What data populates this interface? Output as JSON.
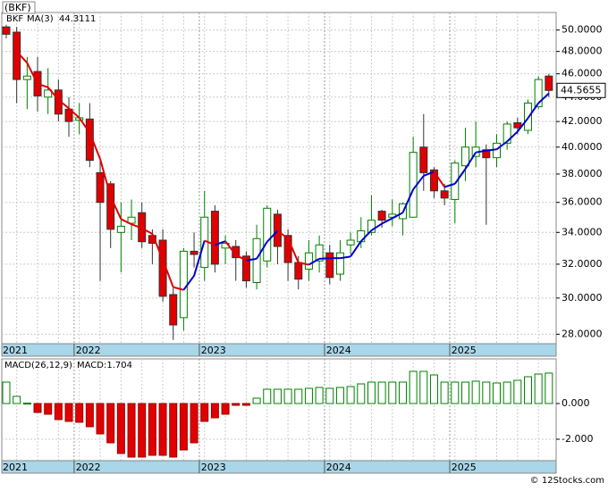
{
  "chart_data": [
    {
      "type": "candlestick",
      "title": "(BKF)",
      "log": true,
      "grid": true,
      "up_color": "#008000",
      "down_color": "#e00000",
      "categories": [
        "2021",
        null,
        null,
        null,
        null,
        null,
        null,
        "2022",
        null,
        null,
        null,
        null,
        null,
        null,
        null,
        null,
        null,
        null,
        null,
        "2023",
        null,
        null,
        null,
        null,
        null,
        null,
        null,
        null,
        null,
        null,
        null,
        "2024",
        null,
        null,
        null,
        null,
        null,
        null,
        null,
        null,
        null,
        null,
        null,
        "2025",
        null,
        null,
        null,
        null,
        null,
        null,
        null,
        null,
        null
      ],
      "name": "BKF",
      "open": [
        50.3,
        49.8,
        45.5,
        46.2,
        44.0,
        44.6,
        43.0,
        42.1,
        42.2,
        38.1,
        37.3,
        34.0,
        34.6,
        35.3,
        33.8,
        33.5,
        30.2,
        28.9,
        32.8,
        31.8,
        35.4,
        33.0,
        33.1,
        32.5,
        30.9,
        32.2,
        35.2,
        33.8,
        32.1,
        31.7,
        32.2,
        32.7,
        31.4,
        33.2,
        33.4,
        34.0,
        35.4,
        35.0,
        34.9,
        35.0,
        40.0,
        38.3,
        36.8,
        36.2,
        38.6,
        39.3,
        39.8,
        39.2,
        40.3,
        41.9,
        41.3,
        43.2,
        45.8
      ],
      "high": [
        50.5,
        50.3,
        47.5,
        47.5,
        46.5,
        45.5,
        44.0,
        43.5,
        43.5,
        39.0,
        37.5,
        36.0,
        36.2,
        36.0,
        34.2,
        34.2,
        30.6,
        33.0,
        34.0,
        36.8,
        35.8,
        33.8,
        33.5,
        32.8,
        34.5,
        35.8,
        35.5,
        34.2,
        32.5,
        33.5,
        33.8,
        33.2,
        33.5,
        34.0,
        35.0,
        36.5,
        35.5,
        36.2,
        36.0,
        40.8,
        42.6,
        38.5,
        37.3,
        39.0,
        41.5,
        42.0,
        40.2,
        41.0,
        42.0,
        42.3,
        43.8,
        45.8,
        46.0
      ],
      "low": [
        49.2,
        43.5,
        43.0,
        42.8,
        42.6,
        42.0,
        40.8,
        41.0,
        38.5,
        31.0,
        33.0,
        31.5,
        33.5,
        33.0,
        32.0,
        29.8,
        27.7,
        28.2,
        31.8,
        31.0,
        31.5,
        32.0,
        31.0,
        30.6,
        30.5,
        31.8,
        32.0,
        31.0,
        30.5,
        31.0,
        31.5,
        30.8,
        31.0,
        32.6,
        33.0,
        33.8,
        34.3,
        34.4,
        33.8,
        35.0,
        36.8,
        36.3,
        35.8,
        34.6,
        37.5,
        38.5,
        34.5,
        38.5,
        39.8,
        41.0,
        41.0,
        43.0,
        44.0
      ],
      "close": [
        49.6,
        45.5,
        45.8,
        44.1,
        44.6,
        42.6,
        42.0,
        42.3,
        39.0,
        36.0,
        34.2,
        34.4,
        35.0,
        33.4,
        33.3,
        30.1,
        28.5,
        32.8,
        32.6,
        35.0,
        32.0,
        33.3,
        32.4,
        31.0,
        33.6,
        35.6,
        33.1,
        32.1,
        31.1,
        32.7,
        33.2,
        31.2,
        32.7,
        33.5,
        34.1,
        34.8,
        34.8,
        35.2,
        35.9,
        39.6,
        38.1,
        36.8,
        36.3,
        38.8,
        40.0,
        40.0,
        39.2,
        40.3,
        41.8,
        41.5,
        43.5,
        45.5,
        44.5655
      ],
      "ma": {
        "name": "MA(3)",
        "rising_color": "#0000cc",
        "falling_color": "#e00000",
        "values": [
          null,
          48.0,
          46.97,
          45.13,
          44.83,
          43.77,
          43.07,
          42.3,
          41.1,
          39.1,
          36.4,
          34.87,
          34.53,
          34.27,
          33.9,
          32.27,
          30.63,
          30.47,
          31.3,
          33.47,
          33.2,
          33.43,
          32.57,
          32.23,
          32.33,
          33.4,
          34.1,
          33.6,
          32.1,
          31.97,
          32.33,
          32.37,
          32.37,
          32.47,
          33.43,
          34.13,
          34.57,
          34.93,
          35.3,
          36.9,
          37.87,
          38.17,
          37.07,
          37.3,
          38.37,
          39.6,
          39.73,
          39.83,
          40.43,
          41.2,
          42.27,
          43.5,
          44.3111
        ]
      },
      "ylim": [
        27.5,
        51.7
      ],
      "yticks": [
        {
          "value": 28,
          "label": "28.0000"
        },
        {
          "value": 30,
          "label": "30.0000"
        },
        {
          "value": 32,
          "label": "32.0000"
        },
        {
          "value": 34,
          "label": "34.0000"
        },
        {
          "value": 36,
          "label": "36.0000"
        },
        {
          "value": 38,
          "label": "38.0000"
        },
        {
          "value": 40,
          "label": "40.0000"
        },
        {
          "value": 42,
          "label": "42.0000"
        },
        {
          "value": 44,
          "label": "44.0000"
        },
        {
          "value": 46,
          "label": "46.0000"
        },
        {
          "value": 48,
          "label": "48.0000"
        },
        {
          "value": 50,
          "label": "50.0000"
        }
      ]
    },
    {
      "type": "macd",
      "title": "MACD(26,12,9)",
      "current_label": "MACD:1.704",
      "up_color": "#008000",
      "down_color": "#e00000",
      "values": [
        1.2,
        0.4,
        0.02,
        -0.5,
        -0.6,
        -0.9,
        -1.0,
        -1.05,
        -1.3,
        -1.7,
        -2.2,
        -2.8,
        -3.0,
        -3.0,
        -2.9,
        -2.9,
        -3.0,
        -2.6,
        -2.2,
        -1.0,
        -0.8,
        -0.6,
        -0.1,
        -0.1,
        0.3,
        0.8,
        0.8,
        0.8,
        0.8,
        0.85,
        0.9,
        0.85,
        0.9,
        0.95,
        1.1,
        1.2,
        1.2,
        1.2,
        1.2,
        1.8,
        1.8,
        1.6,
        1.2,
        1.2,
        1.2,
        1.25,
        1.2,
        1.15,
        1.2,
        1.3,
        1.5,
        1.65,
        1.704
      ],
      "ylim": [
        -3.2,
        2.5
      ],
      "yticks": [
        {
          "value": 0,
          "label": "0.000"
        },
        {
          "value": -2,
          "label": "-2.000"
        }
      ]
    }
  ],
  "footer": "© 12Stocks.com"
}
